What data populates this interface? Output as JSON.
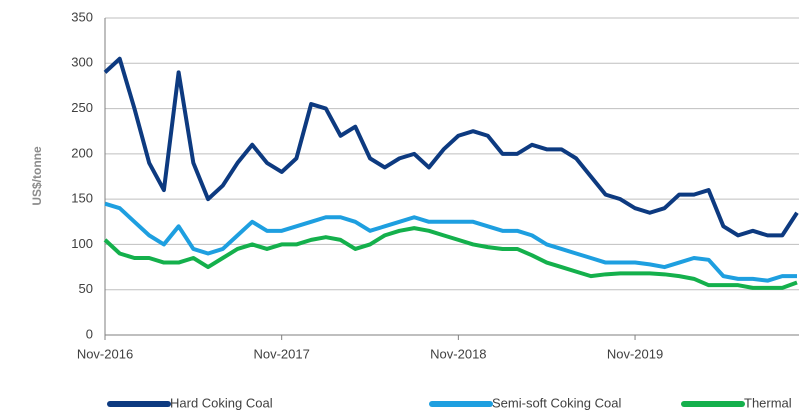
{
  "chart_data": {
    "type": "line",
    "y_label": "US$/tonne",
    "categories": [
      "Nov-2016",
      null,
      null,
      null,
      null,
      null,
      null,
      null,
      null,
      null,
      null,
      null,
      "Nov-2017",
      null,
      null,
      null,
      null,
      null,
      null,
      null,
      null,
      null,
      null,
      null,
      "Nov-2018",
      null,
      null,
      null,
      null,
      null,
      null,
      null,
      null,
      null,
      null,
      null,
      "Nov-2019",
      null,
      null,
      null,
      null,
      null,
      null,
      null,
      null,
      null,
      null,
      null
    ],
    "series": [
      {
        "name": "Hard Coking Coal",
        "color": "#0d3a80",
        "values": [
          290,
          305,
          250,
          190,
          160,
          290,
          190,
          150,
          165,
          190,
          210,
          190,
          180,
          195,
          255,
          250,
          220,
          230,
          195,
          185,
          195,
          200,
          185,
          205,
          220,
          225,
          220,
          200,
          200,
          210,
          205,
          205,
          195,
          175,
          155,
          150,
          140,
          135,
          140,
          155,
          155,
          160,
          120,
          110,
          115,
          110,
          110,
          135
        ]
      },
      {
        "name": "Semi-soft Coking Coal",
        "color": "#1e9fe0",
        "values": [
          145,
          140,
          125,
          110,
          100,
          120,
          95,
          90,
          95,
          110,
          125,
          115,
          115,
          120,
          125,
          130,
          130,
          125,
          115,
          120,
          125,
          130,
          125,
          125,
          125,
          125,
          120,
          115,
          115,
          110,
          100,
          95,
          90,
          85,
          80,
          80,
          80,
          78,
          75,
          80,
          85,
          83,
          65,
          62,
          62,
          60,
          65,
          65
        ]
      },
      {
        "name": "Thermal",
        "color": "#14b04c",
        "values": [
          105,
          90,
          85,
          85,
          80,
          80,
          85,
          75,
          85,
          95,
          100,
          95,
          100,
          100,
          105,
          108,
          105,
          95,
          100,
          110,
          115,
          118,
          115,
          110,
          105,
          100,
          97,
          95,
          95,
          88,
          80,
          75,
          70,
          65,
          67,
          68,
          68,
          68,
          67,
          65,
          62,
          55,
          55,
          55,
          52,
          52,
          52,
          58
        ]
      }
    ],
    "ylim": [
      0,
      350
    ],
    "yticks": [
      0,
      50,
      100,
      150,
      200,
      250,
      300,
      350
    ],
    "grid": true,
    "legend": "bottom"
  }
}
